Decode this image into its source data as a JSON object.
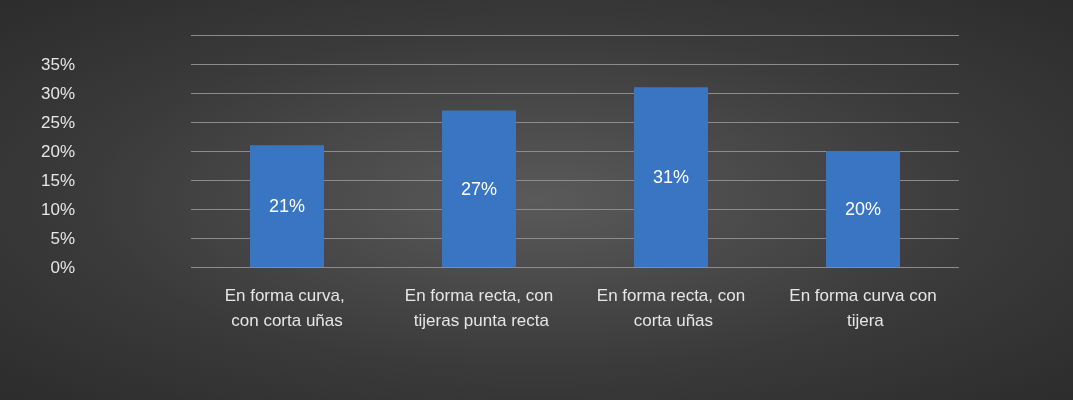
{
  "chart_data": {
    "type": "bar",
    "categories": [
      "En forma curva, con corta uñas",
      "En forma recta, con tijeras punta recta",
      "En forma recta, con corta uñas",
      "En forma curva con tijera"
    ],
    "values": [
      21,
      27,
      31,
      20
    ],
    "value_labels": [
      "21%",
      "27%",
      "31%",
      "20%"
    ],
    "color": "#3a75c4",
    "ylim": [
      0,
      40
    ],
    "yticks": [
      {
        "value": 0,
        "label": "0%"
      },
      {
        "value": 5,
        "label": "5%"
      },
      {
        "value": 10,
        "label": "10%"
      },
      {
        "value": 15,
        "label": "15%"
      },
      {
        "value": 20,
        "label": "20%"
      },
      {
        "value": 25,
        "label": "25%"
      },
      {
        "value": 30,
        "label": "30%"
      },
      {
        "value": 35,
        "label": "35%"
      },
      {
        "value": 40,
        "label": null
      }
    ],
    "grid": true
  }
}
